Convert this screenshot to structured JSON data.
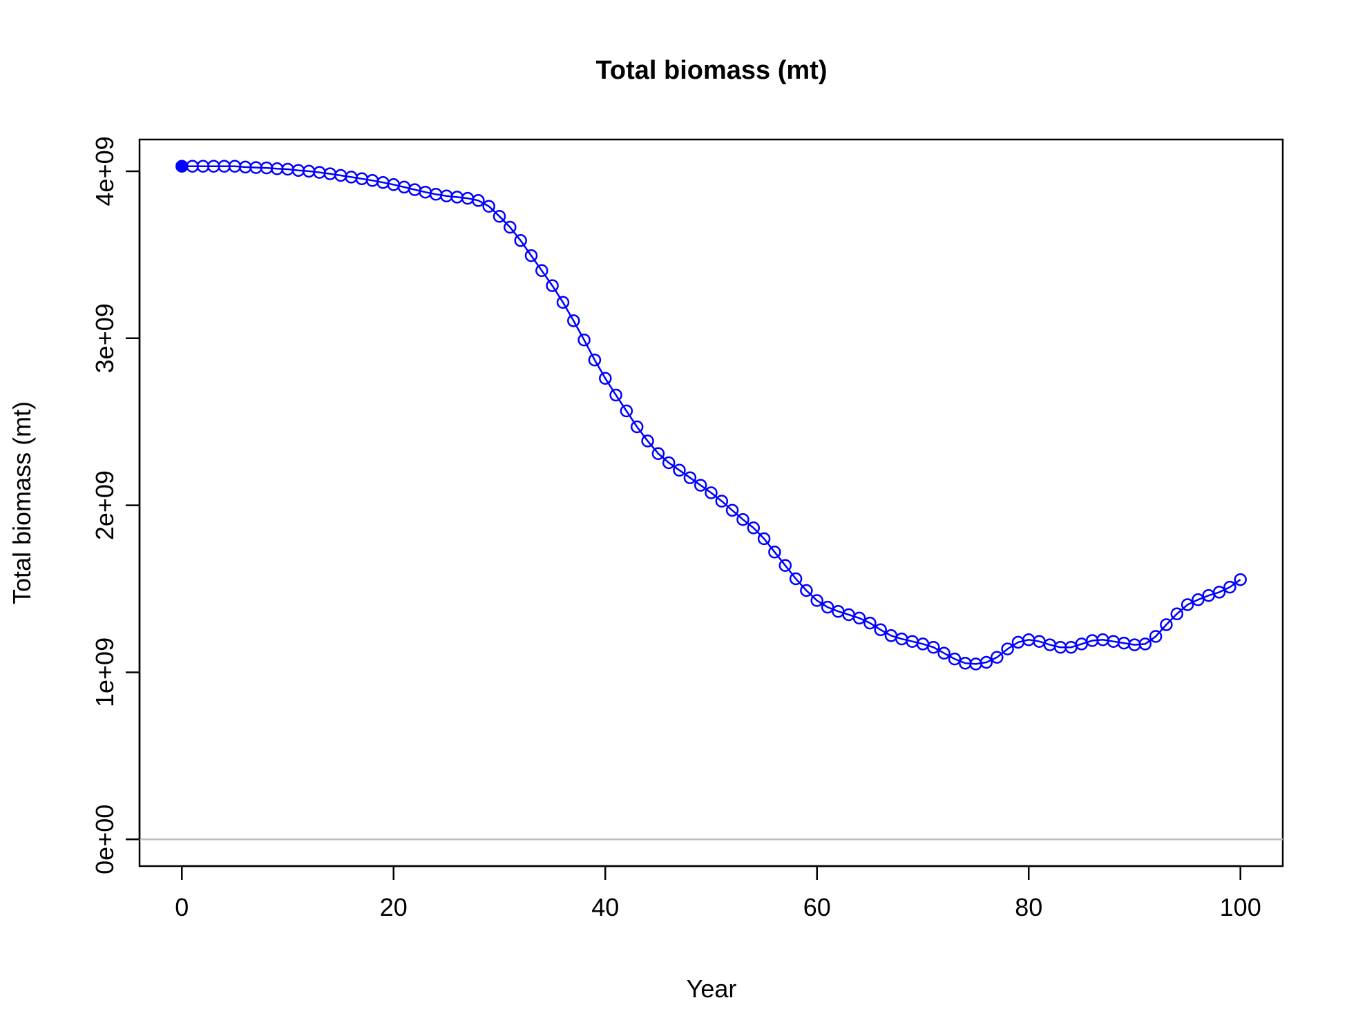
{
  "chart_data": {
    "type": "line",
    "title": "Total biomass (mt)",
    "xlabel": "Year",
    "ylabel": "Total biomass (mt)",
    "xlim": [
      -4,
      104
    ],
    "ylim": [
      -160000000,
      4190000000
    ],
    "x_ticks": [
      0,
      20,
      40,
      60,
      80,
      100
    ],
    "x_tick_labels": [
      "0",
      "20",
      "40",
      "60",
      "80",
      "100"
    ],
    "y_ticks": [
      0,
      1000000000,
      2000000000,
      3000000000,
      4000000000
    ],
    "y_tick_labels": [
      "0e+00",
      "1e+09",
      "2e+09",
      "3e+09",
      "4e+09"
    ],
    "reference_line": {
      "y": 0,
      "color": "#bebebe"
    },
    "grid": false,
    "series": [
      {
        "color": "#0000ff",
        "first_point_filled": true,
        "x": [
          0,
          1,
          2,
          3,
          4,
          5,
          6,
          7,
          8,
          9,
          10,
          11,
          12,
          13,
          14,
          15,
          16,
          17,
          18,
          19,
          20,
          21,
          22,
          23,
          24,
          25,
          26,
          27,
          28,
          29,
          30,
          31,
          32,
          33,
          34,
          35,
          36,
          37,
          38,
          39,
          40,
          41,
          42,
          43,
          44,
          45,
          46,
          47,
          48,
          49,
          50,
          51,
          52,
          53,
          54,
          55,
          56,
          57,
          58,
          59,
          60,
          61,
          62,
          63,
          64,
          65,
          66,
          67,
          68,
          69,
          70,
          71,
          72,
          73,
          74,
          75,
          76,
          77,
          78,
          79,
          80,
          81,
          82,
          83,
          84,
          85,
          86,
          87,
          88,
          89,
          90,
          91,
          92,
          93,
          94,
          95,
          96,
          97,
          98,
          99,
          100
        ],
        "y": [
          4030000000,
          4030000000,
          4030000000,
          4030000000,
          4030000000,
          4030000000,
          4025000000,
          4022000000,
          4020000000,
          4015000000,
          4012000000,
          4005000000,
          4000000000,
          3993000000,
          3985000000,
          3975000000,
          3965000000,
          3955000000,
          3945000000,
          3933000000,
          3920000000,
          3905000000,
          3890000000,
          3875000000,
          3862000000,
          3852000000,
          3845000000,
          3838000000,
          3825000000,
          3790000000,
          3730000000,
          3665000000,
          3585000000,
          3495000000,
          3405000000,
          3315000000,
          3215000000,
          3105000000,
          2990000000,
          2870000000,
          2760000000,
          2660000000,
          2565000000,
          2470000000,
          2385000000,
          2310000000,
          2255000000,
          2210000000,
          2165000000,
          2120000000,
          2075000000,
          2025000000,
          1970000000,
          1915000000,
          1865000000,
          1800000000,
          1720000000,
          1640000000,
          1560000000,
          1490000000,
          1430000000,
          1390000000,
          1365000000,
          1345000000,
          1325000000,
          1295000000,
          1255000000,
          1220000000,
          1200000000,
          1185000000,
          1170000000,
          1150000000,
          1115000000,
          1080000000,
          1055000000,
          1050000000,
          1060000000,
          1090000000,
          1140000000,
          1180000000,
          1195000000,
          1185000000,
          1165000000,
          1150000000,
          1150000000,
          1170000000,
          1190000000,
          1195000000,
          1185000000,
          1175000000,
          1165000000,
          1170000000,
          1215000000,
          1285000000,
          1350000000,
          1405000000,
          1435000000,
          1460000000,
          1480000000,
          1510000000,
          1555000000
        ]
      }
    ]
  }
}
